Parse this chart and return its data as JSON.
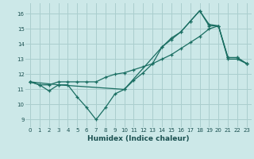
{
  "background_color": "#cce8e8",
  "grid_color": "#aacece",
  "line_color": "#1a6e62",
  "xlabel": "Humidex (Indice chaleur)",
  "xlim": [
    -0.5,
    23.5
  ],
  "ylim": [
    8.5,
    16.7
  ],
  "yticks": [
    9,
    10,
    11,
    12,
    13,
    14,
    15,
    16
  ],
  "xticks": [
    0,
    1,
    2,
    3,
    4,
    5,
    6,
    7,
    8,
    9,
    10,
    11,
    12,
    13,
    14,
    15,
    16,
    17,
    18,
    19,
    20,
    21,
    22,
    23
  ],
  "line1_x": [
    0,
    1,
    2,
    3,
    4,
    5,
    6,
    7,
    8,
    9,
    10,
    11,
    12,
    13,
    14,
    15,
    16,
    17,
    18,
    19,
    20,
    21,
    22,
    23
  ],
  "line1_y": [
    11.5,
    11.3,
    10.9,
    11.3,
    11.3,
    10.5,
    9.8,
    9.0,
    9.8,
    10.7,
    11.0,
    11.6,
    12.1,
    12.7,
    13.8,
    14.4,
    14.8,
    15.5,
    16.2,
    15.2,
    15.2,
    13.0,
    13.0,
    12.7
  ],
  "line2_x": [
    0,
    1,
    2,
    3,
    4,
    5,
    6,
    7,
    8,
    9,
    10,
    11,
    12,
    13,
    14,
    15,
    16,
    17,
    18,
    19,
    20,
    21,
    22,
    23
  ],
  "line2_y": [
    11.5,
    11.3,
    11.3,
    11.5,
    11.5,
    11.5,
    11.5,
    11.5,
    11.8,
    12.0,
    12.1,
    12.3,
    12.5,
    12.7,
    13.0,
    13.3,
    13.7,
    14.1,
    14.5,
    15.0,
    15.2,
    13.1,
    13.1,
    12.7
  ],
  "line3_x": [
    0,
    3,
    10,
    14,
    15,
    16,
    17,
    18,
    19,
    20,
    21,
    22,
    23
  ],
  "line3_y": [
    11.5,
    11.3,
    11.0,
    13.8,
    14.3,
    14.8,
    15.5,
    16.2,
    15.3,
    15.2,
    13.1,
    13.1,
    12.7
  ],
  "tick_labelsize": 5.0,
  "xlabel_fontsize": 6.5
}
